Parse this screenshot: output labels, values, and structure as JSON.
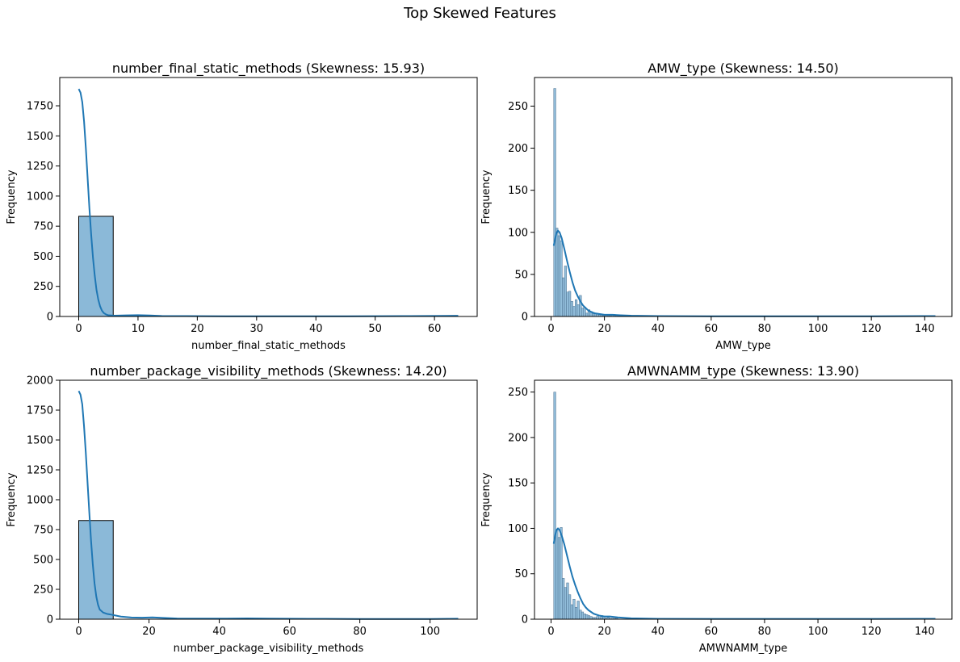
{
  "figure": {
    "title": "Top Skewed Features"
  },
  "chart_data": [
    {
      "type": "bar",
      "title": "number_final_static_methods (Skewness: 15.93)",
      "xlabel": "number_final_static_methods",
      "ylabel": "Frequency",
      "xlim": [
        -3.2,
        67.2
      ],
      "ylim": [
        0,
        1985
      ],
      "xticks": [
        0,
        10,
        20,
        30,
        40,
        50,
        60
      ],
      "yticks": [
        0,
        250,
        500,
        750,
        1000,
        1250,
        1500,
        1750
      ],
      "bars": [
        {
          "x0": 0,
          "x1": 5.82,
          "value": 832
        }
      ],
      "kde": [
        [
          0,
          1890
        ],
        [
          0.3,
          1860
        ],
        [
          0.6,
          1780
        ],
        [
          0.9,
          1620
        ],
        [
          1.2,
          1400
        ],
        [
          1.5,
          1150
        ],
        [
          1.8,
          900
        ],
        [
          2.1,
          680
        ],
        [
          2.4,
          490
        ],
        [
          2.7,
          340
        ],
        [
          3.0,
          220
        ],
        [
          3.3,
          140
        ],
        [
          3.6,
          85
        ],
        [
          3.9,
          50
        ],
        [
          4.2,
          30
        ],
        [
          4.6,
          17
        ],
        [
          5.0,
          10
        ],
        [
          6,
          7
        ],
        [
          8,
          9
        ],
        [
          10,
          11
        ],
        [
          12,
          8
        ],
        [
          14,
          4
        ],
        [
          18,
          3
        ],
        [
          25,
          2
        ],
        [
          35,
          2
        ],
        [
          45,
          2
        ],
        [
          55,
          3
        ],
        [
          62,
          5
        ],
        [
          64,
          6
        ]
      ],
      "bar_color": "#8bb9d8",
      "line_color": "#1f77b4"
    },
    {
      "type": "bar",
      "title": "AMW_type (Skewness: 14.50)",
      "xlabel": "AMW_type",
      "ylabel": "Frequency",
      "xlim": [
        -6.2,
        150.2
      ],
      "ylim": [
        0,
        284
      ],
      "xticks": [
        0,
        20,
        40,
        60,
        80,
        100,
        120,
        140
      ],
      "yticks": [
        0,
        50,
        100,
        150,
        200,
        250
      ],
      "bin_start": 1,
      "bin_width": 0.8,
      "counts": [
        271,
        105,
        96,
        90,
        46,
        60,
        29,
        30,
        18,
        12,
        20,
        14,
        25,
        10,
        11,
        4,
        8,
        6,
        5,
        4,
        3,
        2,
        2,
        1,
        2,
        1,
        1,
        2,
        1,
        1,
        1,
        1,
        1,
        1,
        1
      ],
      "kde": [
        [
          1,
          84
        ],
        [
          1.5,
          92
        ],
        [
          2,
          99
        ],
        [
          2.6,
          102
        ],
        [
          3.2,
          100
        ],
        [
          4,
          93
        ],
        [
          5,
          80
        ],
        [
          6,
          66
        ],
        [
          7,
          53
        ],
        [
          8,
          41
        ],
        [
          9,
          31
        ],
        [
          10,
          24
        ],
        [
          11,
          18
        ],
        [
          12,
          13
        ],
        [
          13,
          10
        ],
        [
          14,
          7
        ],
        [
          16,
          4
        ],
        [
          18,
          3
        ],
        [
          20,
          2
        ],
        [
          23,
          2
        ],
        [
          26,
          1.5
        ],
        [
          30,
          1
        ],
        [
          40,
          0.5
        ],
        [
          60,
          0.3
        ],
        [
          90,
          0.3
        ],
        [
          120,
          0.3
        ],
        [
          144,
          0.5
        ]
      ],
      "bar_color": "#8bb9d8",
      "line_color": "#1f77b4"
    },
    {
      "type": "bar",
      "title": "number_package_visibility_methods (Skewness: 14.20)",
      "xlabel": "number_package_visibility_methods",
      "ylabel": "Frequency",
      "xlim": [
        -5.4,
        113.4
      ],
      "ylim": [
        0,
        2000
      ],
      "xticks": [
        0,
        20,
        40,
        60,
        80,
        100
      ],
      "yticks": [
        0,
        250,
        500,
        750,
        1000,
        1250,
        1500,
        1750,
        2000
      ],
      "bars": [
        {
          "x0": 0,
          "x1": 9.82,
          "value": 826
        }
      ],
      "kde": [
        [
          0,
          1910
        ],
        [
          0.5,
          1880
        ],
        [
          1,
          1800
        ],
        [
          1.5,
          1620
        ],
        [
          2,
          1400
        ],
        [
          2.5,
          1150
        ],
        [
          3,
          900
        ],
        [
          3.5,
          660
        ],
        [
          4,
          460
        ],
        [
          4.5,
          300
        ],
        [
          5,
          190
        ],
        [
          5.5,
          120
        ],
        [
          6,
          80
        ],
        [
          7,
          55
        ],
        [
          8,
          45
        ],
        [
          9,
          40
        ],
        [
          10,
          34
        ],
        [
          12,
          22
        ],
        [
          15,
          14
        ],
        [
          18,
          13
        ],
        [
          21,
          15
        ],
        [
          24,
          11
        ],
        [
          28,
          6
        ],
        [
          35,
          5
        ],
        [
          42,
          5
        ],
        [
          48,
          7
        ],
        [
          54,
          5
        ],
        [
          60,
          4
        ],
        [
          70,
          3
        ],
        [
          80,
          2
        ],
        [
          90,
          2
        ],
        [
          100,
          2
        ],
        [
          108,
          4
        ]
      ],
      "bar_color": "#8bb9d8",
      "line_color": "#1f77b4"
    },
    {
      "type": "bar",
      "title": "AMWNAMM_type (Skewness: 13.90)",
      "xlabel": "AMWNAMM_type",
      "ylabel": "Frequency",
      "xlim": [
        -6.2,
        150.2
      ],
      "ylim": [
        0,
        263
      ],
      "xticks": [
        0,
        20,
        40,
        60,
        80,
        100,
        120,
        140
      ],
      "yticks": [
        0,
        50,
        100,
        150,
        200,
        250
      ],
      "bin_start": 1,
      "bin_width": 0.8,
      "counts": [
        250,
        98,
        90,
        101,
        45,
        35,
        40,
        27,
        16,
        22,
        13,
        20,
        10,
        8,
        6,
        5,
        4,
        3,
        2,
        2,
        3,
        2,
        4,
        3,
        1,
        2,
        1,
        1,
        1,
        1
      ],
      "kde": [
        [
          1,
          83
        ],
        [
          1.5,
          92
        ],
        [
          2,
          98
        ],
        [
          2.6,
          100
        ],
        [
          3.2,
          98
        ],
        [
          4,
          92
        ],
        [
          5,
          82
        ],
        [
          6,
          70
        ],
        [
          7,
          58
        ],
        [
          8,
          47
        ],
        [
          9,
          38
        ],
        [
          10,
          30
        ],
        [
          11,
          23
        ],
        [
          12,
          17
        ],
        [
          13,
          13
        ],
        [
          14,
          10
        ],
        [
          16,
          6
        ],
        [
          18,
          4
        ],
        [
          20,
          3
        ],
        [
          22,
          3
        ],
        [
          25,
          2
        ],
        [
          30,
          1
        ],
        [
          40,
          0.5
        ],
        [
          60,
          0.3
        ],
        [
          90,
          0.3
        ],
        [
          120,
          0.3
        ],
        [
          144,
          0.5
        ]
      ],
      "bar_color": "#8bb9d8",
      "line_color": "#1f77b4"
    }
  ]
}
